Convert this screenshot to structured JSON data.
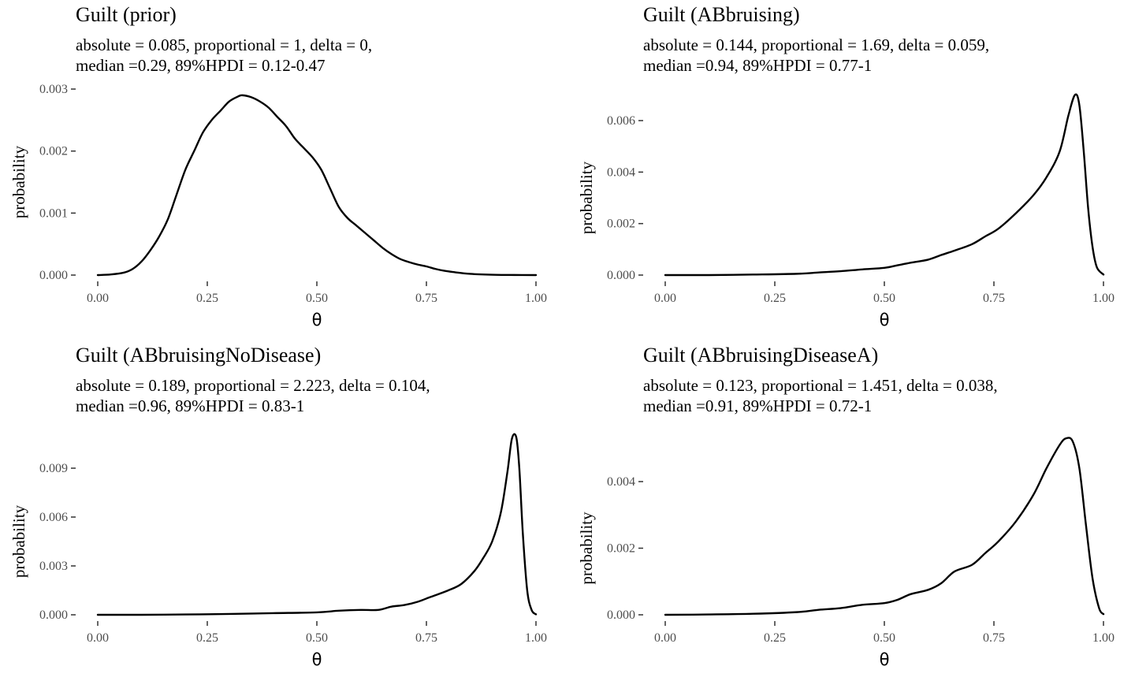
{
  "chart_data": [
    {
      "type": "line",
      "title": "Guilt (prior)",
      "subtitle_line1": "absolute = 0.085, proportional = 1, delta = 0,",
      "subtitle_line2": "median =0.29, 89%HPDI = 0.12-0.47",
      "xlabel": "θ",
      "ylabel": "probability",
      "xlim": [
        0,
        1
      ],
      "ylim": [
        0,
        0.003
      ],
      "xticks": [
        "0.00",
        "0.25",
        "0.50",
        "0.75",
        "1.00"
      ],
      "xtick_values": [
        0,
        0.25,
        0.5,
        0.75,
        1
      ],
      "yticks": [
        "0.000",
        "0.001",
        "0.002",
        "0.003"
      ],
      "ytick_values": [
        0,
        0.001,
        0.002,
        0.003
      ],
      "grid": false,
      "x": [
        0.0,
        0.03,
        0.06,
        0.08,
        0.1,
        0.12,
        0.14,
        0.16,
        0.18,
        0.2,
        0.22,
        0.24,
        0.26,
        0.28,
        0.3,
        0.32,
        0.33,
        0.35,
        0.37,
        0.39,
        0.41,
        0.43,
        0.45,
        0.47,
        0.49,
        0.51,
        0.53,
        0.55,
        0.57,
        0.59,
        0.61,
        0.63,
        0.65,
        0.67,
        0.69,
        0.71,
        0.73,
        0.75,
        0.77,
        0.79,
        0.81,
        0.85,
        0.9,
        0.95,
        1.0
      ],
      "y": [
        0.0,
        1e-05,
        4e-05,
        0.0001,
        0.00022,
        0.0004,
        0.00062,
        0.0009,
        0.0013,
        0.0017,
        0.002,
        0.0023,
        0.0025,
        0.00265,
        0.0028,
        0.00288,
        0.0029,
        0.00287,
        0.0028,
        0.0027,
        0.00255,
        0.0024,
        0.0022,
        0.00205,
        0.0019,
        0.0017,
        0.0014,
        0.0011,
        0.00092,
        0.0008,
        0.00068,
        0.00056,
        0.00044,
        0.00034,
        0.00026,
        0.00021,
        0.00017,
        0.00014,
        0.0001,
        7e-05,
        5e-05,
        2e-05,
        5e-06,
        1.5e-06,
        0.0
      ]
    },
    {
      "type": "line",
      "title": "Guilt (ABbruising)",
      "subtitle_line1": "absolute = 0.144, proportional = 1.69, delta = 0.059,",
      "subtitle_line2": "median =0.94, 89%HPDI = 0.77-1",
      "xlabel": "θ",
      "ylabel": "probability",
      "xlim": [
        0,
        1
      ],
      "ylim": [
        0,
        0.0072
      ],
      "xticks": [
        "0.00",
        "0.25",
        "0.50",
        "0.75",
        "1.00"
      ],
      "xtick_values": [
        0,
        0.25,
        0.5,
        0.75,
        1
      ],
      "yticks": [
        "0.000",
        "0.002",
        "0.004",
        "0.006"
      ],
      "ytick_values": [
        0,
        0.002,
        0.004,
        0.006
      ],
      "grid": false,
      "x": [
        0.0,
        0.1,
        0.2,
        0.3,
        0.35,
        0.4,
        0.45,
        0.5,
        0.53,
        0.56,
        0.6,
        0.63,
        0.66,
        0.7,
        0.73,
        0.76,
        0.8,
        0.84,
        0.87,
        0.9,
        0.92,
        0.935,
        0.945,
        0.955,
        0.965,
        0.975,
        0.985,
        1.0
      ],
      "y": [
        0.0,
        0.0,
        2e-05,
        5e-05,
        0.0001,
        0.00015,
        0.00022,
        0.00028,
        0.00038,
        0.00048,
        0.0006,
        0.00078,
        0.00095,
        0.0012,
        0.0015,
        0.0018,
        0.0024,
        0.0031,
        0.0038,
        0.0048,
        0.0062,
        0.007,
        0.0066,
        0.0048,
        0.0026,
        0.0011,
        0.0003,
        2e-05
      ]
    },
    {
      "type": "line",
      "title": "Guilt (ABbruisingNoDisease)",
      "subtitle_line1": "absolute = 0.189, proportional = 2.223, delta = 0.104,",
      "subtitle_line2": "median =0.96, 89%HPDI = 0.83-1",
      "xlabel": "θ",
      "ylabel": "probability",
      "xlim": [
        0,
        1
      ],
      "ylim": [
        0,
        0.0112
      ],
      "xticks": [
        "0.00",
        "0.25",
        "0.50",
        "0.75",
        "1.00"
      ],
      "xtick_values": [
        0,
        0.25,
        0.5,
        0.75,
        1
      ],
      "yticks": [
        "0.000",
        "0.003",
        "0.006",
        "0.009"
      ],
      "ytick_values": [
        0,
        0.003,
        0.006,
        0.009
      ],
      "grid": false,
      "x": [
        0.0,
        0.1,
        0.2,
        0.3,
        0.4,
        0.5,
        0.55,
        0.6,
        0.64,
        0.67,
        0.7,
        0.73,
        0.76,
        0.8,
        0.83,
        0.86,
        0.88,
        0.9,
        0.92,
        0.935,
        0.945,
        0.955,
        0.962,
        0.97,
        0.98,
        0.99,
        1.0
      ],
      "y": [
        0.0,
        0.0,
        2e-05,
        5e-05,
        0.0001,
        0.00015,
        0.00025,
        0.0003,
        0.0003,
        0.0005,
        0.0006,
        0.0008,
        0.0011,
        0.0015,
        0.0019,
        0.0027,
        0.0035,
        0.0045,
        0.0063,
        0.0088,
        0.0108,
        0.0109,
        0.009,
        0.005,
        0.0015,
        0.0003,
        3e-05
      ]
    },
    {
      "type": "line",
      "title": "Guilt (ABbruisingDiseaseA)",
      "subtitle_line1": "absolute = 0.123, proportional = 1.451, delta = 0.038,",
      "subtitle_line2": "median =0.91, 89%HPDI = 0.72-1",
      "xlabel": "θ",
      "ylabel": "probability",
      "xlim": [
        0,
        1
      ],
      "ylim": [
        0,
        0.0055
      ],
      "xticks": [
        "0.00",
        "0.25",
        "0.50",
        "0.75",
        "1.00"
      ],
      "xtick_values": [
        0,
        0.25,
        0.5,
        0.75,
        1
      ],
      "yticks": [
        "0.000",
        "0.002",
        "0.004"
      ],
      "ytick_values": [
        0,
        0.002,
        0.004
      ],
      "grid": false,
      "x": [
        0.0,
        0.1,
        0.2,
        0.3,
        0.35,
        0.4,
        0.45,
        0.5,
        0.53,
        0.56,
        0.6,
        0.63,
        0.66,
        0.7,
        0.73,
        0.76,
        0.8,
        0.84,
        0.87,
        0.9,
        0.915,
        0.93,
        0.945,
        0.96,
        0.975,
        0.99,
        1.0
      ],
      "y": [
        0.0,
        1e-05,
        3e-05,
        8e-05,
        0.00015,
        0.0002,
        0.0003,
        0.00035,
        0.00045,
        0.00062,
        0.00075,
        0.00095,
        0.0013,
        0.0015,
        0.00185,
        0.0022,
        0.0028,
        0.0036,
        0.0044,
        0.0051,
        0.0053,
        0.0052,
        0.0044,
        0.0027,
        0.0011,
        0.0002,
        2e-05
      ]
    }
  ]
}
